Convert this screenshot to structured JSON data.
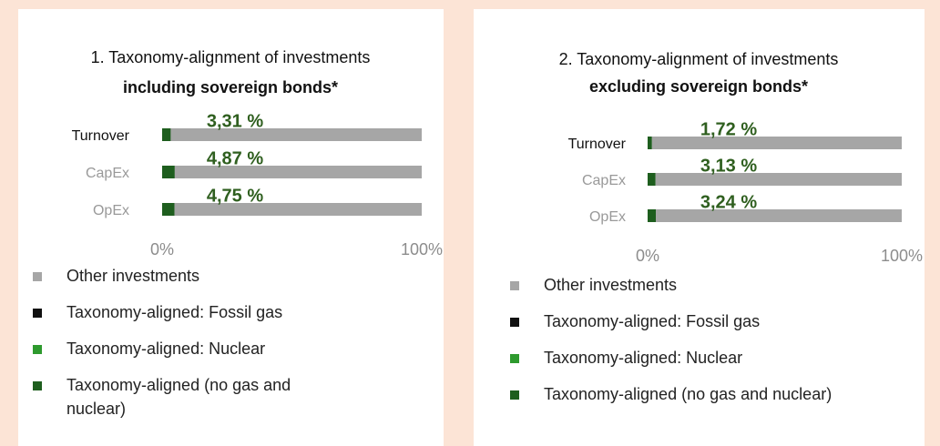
{
  "chart_data": [
    {
      "type": "bar",
      "orientation": "horizontal",
      "stacked": true,
      "title": "1. Taxonomy-alignment of investments",
      "subtitle": "including sovereign bonds*",
      "categories": [
        "Turnover",
        "CapEx",
        "OpEx"
      ],
      "series": [
        {
          "name": "Other investments",
          "color": "#a6a6a6",
          "values": [
            96.69,
            95.13,
            95.25
          ]
        },
        {
          "name": "Taxonomy-aligned: Fossil gas",
          "color": "#111111",
          "values": [
            0,
            0,
            0
          ]
        },
        {
          "name": "Taxonomy-aligned: Nuclear",
          "color": "#2e9a2e",
          "values": [
            0,
            0,
            0
          ]
        },
        {
          "name": "Taxonomy-aligned (no gas and nuclear)",
          "color": "#1e5e1e",
          "values": [
            3.31,
            4.87,
            4.75
          ],
          "value_labels": [
            "3,31 %",
            "4,87 %",
            "4,75 %"
          ]
        }
      ],
      "xlim": [
        0,
        100
      ],
      "xticks": [
        {
          "value": 0,
          "label": "0%"
        },
        {
          "value": 100,
          "label": "100%"
        }
      ]
    },
    {
      "type": "bar",
      "orientation": "horizontal",
      "stacked": true,
      "title": "2. Taxonomy-alignment of investments",
      "subtitle": "excluding sovereign bonds*",
      "categories": [
        "Turnover",
        "CapEx",
        "OpEx"
      ],
      "series": [
        {
          "name": "Other investments",
          "color": "#a6a6a6",
          "values": [
            98.28,
            96.87,
            96.76
          ]
        },
        {
          "name": "Taxonomy-aligned: Fossil gas",
          "color": "#111111",
          "values": [
            0,
            0,
            0
          ]
        },
        {
          "name": "Taxonomy-aligned: Nuclear",
          "color": "#2e9a2e",
          "values": [
            0,
            0,
            0
          ]
        },
        {
          "name": "Taxonomy-aligned (no gas and nuclear)",
          "color": "#1e5e1e",
          "values": [
            1.72,
            3.13,
            3.24
          ],
          "value_labels": [
            "1,72 %",
            "3,13 %",
            "3,24 %"
          ]
        }
      ],
      "xlim": [
        0,
        100
      ],
      "xticks": [
        {
          "value": 0,
          "label": "0%"
        },
        {
          "value": 100,
          "label": "100%"
        }
      ]
    }
  ]
}
